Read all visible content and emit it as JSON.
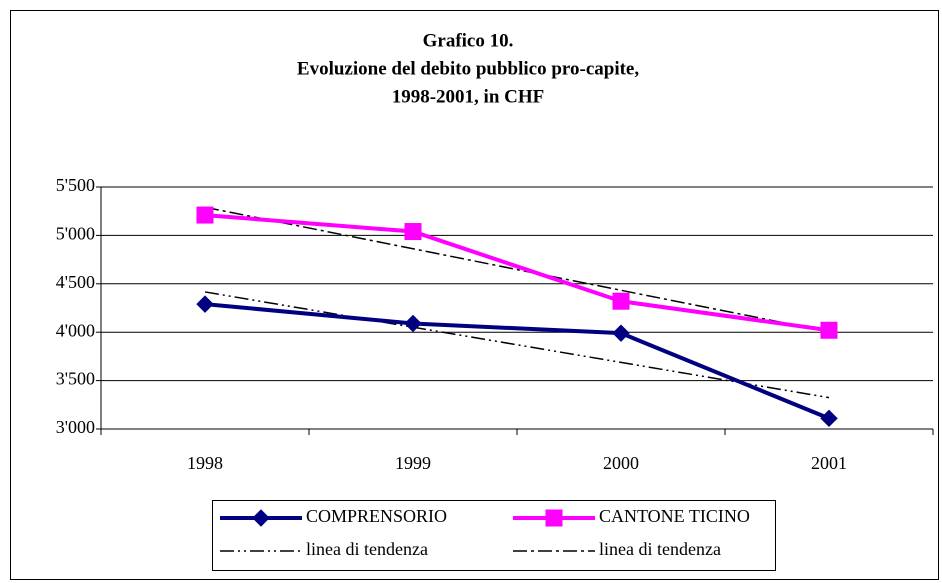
{
  "chart_data": {
    "type": "line",
    "title": [
      "Grafico 10.",
      "Evoluzione del debito pubblico pro-capite,",
      "1998-2001, in CHF"
    ],
    "categories": [
      "1998",
      "1999",
      "2000",
      "2001"
    ],
    "series": [
      {
        "name": "COMPRENSORIO",
        "color": "#000080",
        "marker": "diamond",
        "values": [
          4290,
          4090,
          3990,
          3110
        ]
      },
      {
        "name": "CANTONE TICINO",
        "color": "#ff00ff",
        "marker": "square",
        "values": [
          5210,
          5040,
          4320,
          4020
        ]
      },
      {
        "name": "linea di tendenza",
        "color": "#000000",
        "dash": "dash-dot-dot",
        "values": [
          4416,
          4052,
          3688,
          3324
        ]
      },
      {
        "name": "linea di tendenza",
        "color": "#000000",
        "dash": "dash-dot",
        "values": [
          5291,
          4862,
          4433,
          4004
        ]
      }
    ],
    "ylim": [
      3000,
      5500
    ],
    "yticks": [
      {
        "value": 3000,
        "label": "3'000"
      },
      {
        "value": 3500,
        "label": "3'500"
      },
      {
        "value": 4000,
        "label": "4'000"
      },
      {
        "value": 4500,
        "label": "4'500"
      },
      {
        "value": 5000,
        "label": "5'000"
      },
      {
        "value": 5500,
        "label": "5'500"
      }
    ],
    "grid": true,
    "legend": "bottom"
  }
}
